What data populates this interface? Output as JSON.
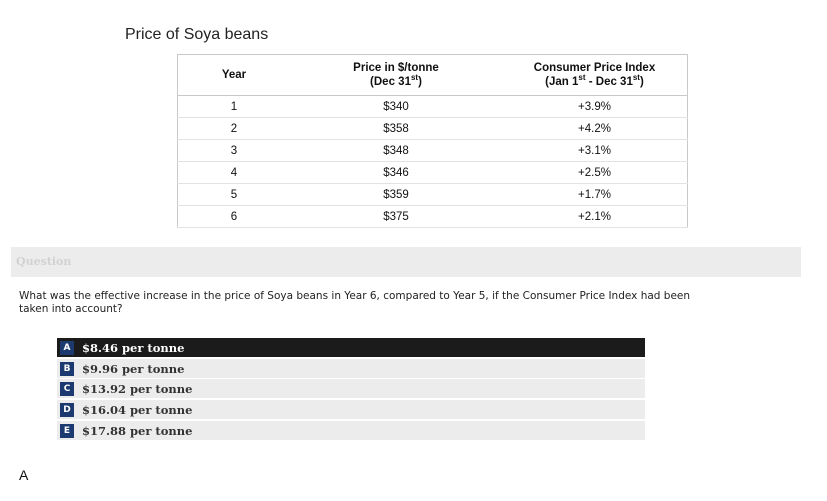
{
  "title": "Price of Soya beans",
  "table": {
    "headers": {
      "year": "Year",
      "price_line1": "Price in $/tonne",
      "price_line2_pre": "(Dec 31",
      "price_line2_sup": "st",
      "price_line2_post": ")",
      "cpi_line1": "Consumer Price Index",
      "cpi_line2_a": "(Jan 1",
      "cpi_line2_sup1": "st",
      "cpi_line2_b": " - Dec 31",
      "cpi_line2_sup2": "st",
      "cpi_line2_c": ")"
    },
    "rows": [
      {
        "year": "1",
        "price": "$340",
        "cpi": "+3.9%"
      },
      {
        "year": "2",
        "price": "$358",
        "cpi": "+4.2%"
      },
      {
        "year": "3",
        "price": "$348",
        "cpi": "+3.1%"
      },
      {
        "year": "4",
        "price": "$346",
        "cpi": "+2.5%"
      },
      {
        "year": "5",
        "price": "$359",
        "cpi": "+1.7%"
      },
      {
        "year": "6",
        "price": "$375",
        "cpi": "+2.1%"
      }
    ]
  },
  "question": {
    "heading": "Question",
    "text_line1": "What was the effective increase in the price of Soya beans in Year 6, compared to Year 5, if the Consumer Price Index had been",
    "text_line2": "taken into account?"
  },
  "options": [
    {
      "letter": "A",
      "text": "$8.46 per tonne",
      "selected": true
    },
    {
      "letter": "B",
      "text": "$9.96 per tonne",
      "selected": false
    },
    {
      "letter": "C",
      "text": "$13.92 per tonne",
      "selected": false
    },
    {
      "letter": "D",
      "text": "$16.04 per tonne",
      "selected": false
    },
    {
      "letter": "E",
      "text": "$17.88 per tonne",
      "selected": false
    }
  ],
  "answer": "A",
  "colors": {
    "letter_badge": "#1d3a70",
    "selected_row": "#1b1b1b",
    "option_row": "#ececec",
    "question_bar": "#ececec"
  }
}
